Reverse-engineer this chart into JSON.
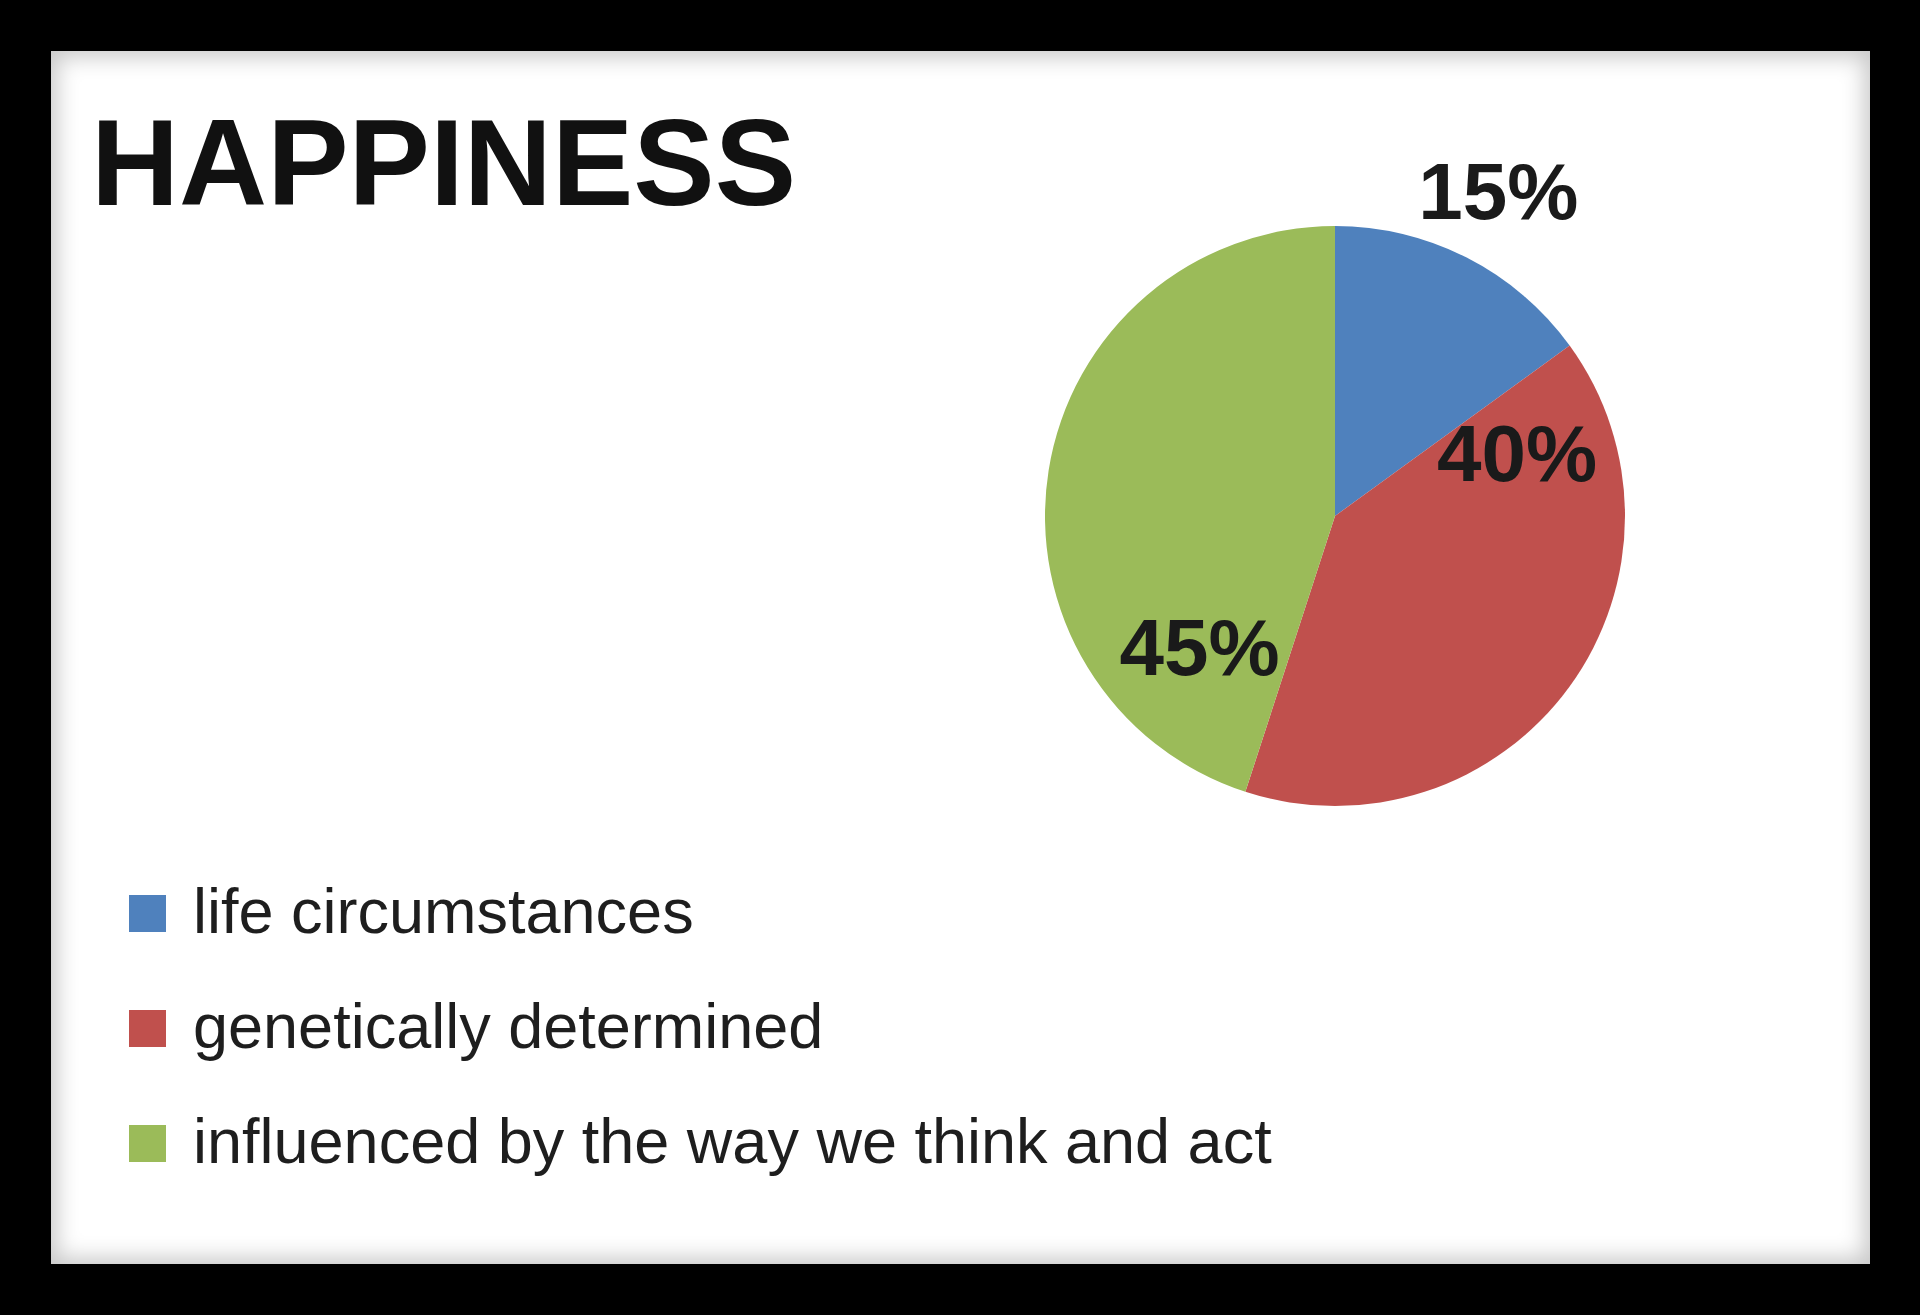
{
  "chart_data": {
    "type": "pie",
    "title": "HAPPINESS",
    "categories": [
      "life circumstances",
      "genetically determined",
      "influenced by the way we think and act"
    ],
    "values": [
      15,
      40,
      45
    ],
    "colors": [
      "#4f81bd",
      "#c0504d",
      "#9bbb59"
    ],
    "value_labels": [
      "15%",
      "40%",
      "45%"
    ],
    "legend": "bottom left"
  }
}
